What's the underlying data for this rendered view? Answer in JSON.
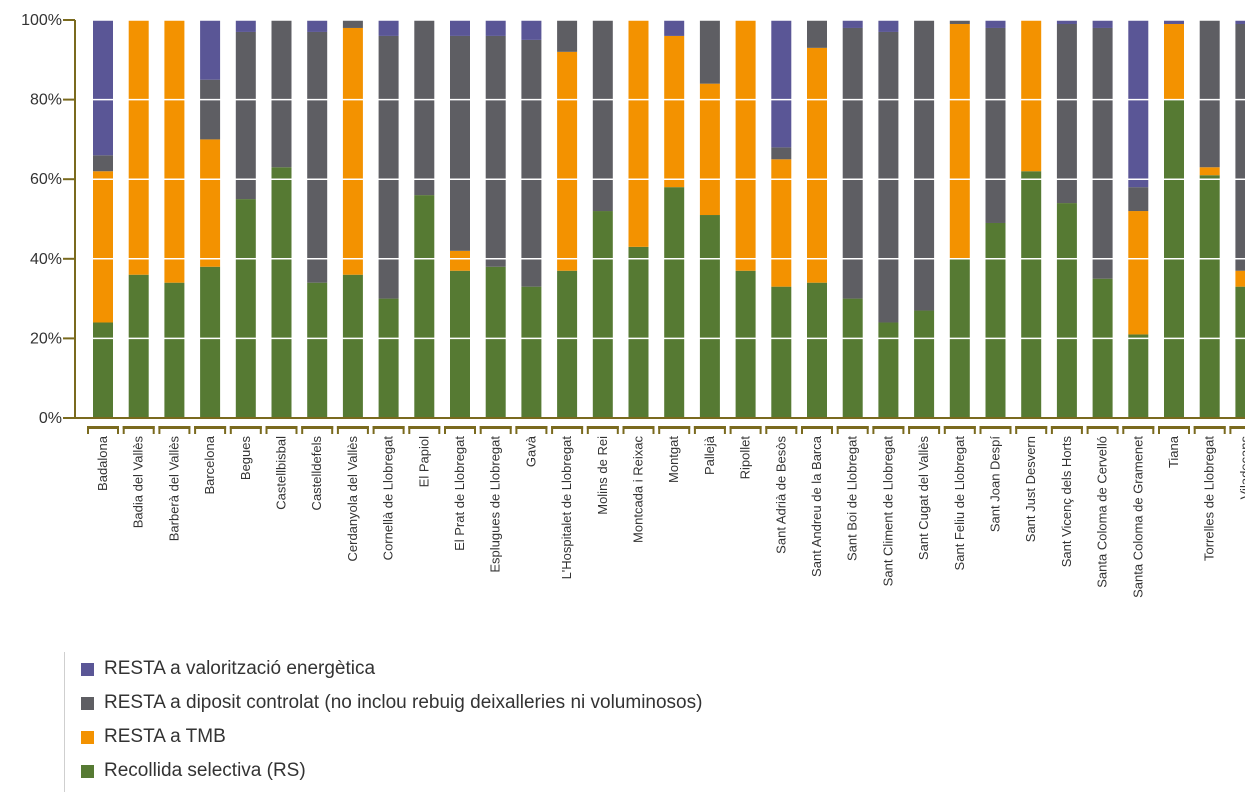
{
  "chart_data": {
    "type": "bar",
    "stacked": true,
    "categories": [
      "Badalona",
      "Badia del Vallès",
      "Barberà del Vallès",
      "Barcelona",
      "Begues",
      "Castellbisbal",
      "Castelldefels",
      "Cerdanyola del Vallès",
      "Cornellà de Llobregat",
      "El Papiol",
      "El Prat de Llobregat",
      "Esplugues de Llobregat",
      "Gavà",
      "L'Hospitalet de Llobregat",
      "Molins de Rei",
      "Montcada i Reixac",
      "Montgat",
      "Pallejà",
      "Ripollet",
      "Sant Adrià de Besòs",
      "Sant Andreu de la Barca",
      "Sant Boi de Llobregat",
      "Sant Climent de Llobregat",
      "Sant Cugat del Vallès",
      "Sant Feliu de Llobregat",
      "Sant Joan Despí",
      "Sant Just Desvern",
      "Sant Vicenç dels Horts",
      "Santa Coloma de Cervelló",
      "Santa Coloma de Gramenet",
      "Tiana",
      "Torrelles de Llobregat",
      "Viladecans"
    ],
    "yticks": [
      "0%",
      "20%",
      "40%",
      "60%",
      "80%",
      "100%"
    ],
    "ylim": [
      0,
      100
    ],
    "series": [
      {
        "name": "Recollida selectiva (RS)",
        "color": "#567a33",
        "values": [
          24,
          36,
          34,
          38,
          55,
          63,
          34,
          36,
          30,
          56,
          37,
          38,
          33,
          37,
          52,
          43,
          58,
          51,
          37,
          33,
          34,
          30,
          24,
          27,
          40,
          49,
          62,
          54,
          35,
          21,
          80,
          61,
          33
        ]
      },
      {
        "name": "RESTA a TMB",
        "color": "#f39200",
        "values": [
          38,
          64,
          66,
          32,
          0,
          0,
          0,
          62,
          0,
          0,
          5,
          0,
          0,
          55,
          0,
          57,
          38,
          33,
          63,
          32,
          59,
          0,
          0,
          0,
          59,
          0,
          38,
          0,
          0,
          31,
          19,
          2,
          4
        ]
      },
      {
        "name": "RESTA a diposit controlat (no inclou rebuig deixalleries ni voluminosos)",
        "color": "#5e5e63",
        "values": [
          4,
          0,
          0,
          15,
          42,
          37,
          63,
          2,
          66,
          44,
          54,
          58,
          62,
          8,
          48,
          0,
          0,
          16,
          0,
          3,
          7,
          68,
          73,
          73,
          1,
          49,
          0,
          45,
          63,
          6,
          0,
          37,
          62
        ]
      },
      {
        "name": "RESTA a valorització energètica",
        "color": "#5a5696",
        "values": [
          34,
          0,
          0,
          15,
          3,
          0,
          3,
          0,
          4,
          0,
          4,
          4,
          5,
          0,
          0,
          0,
          4,
          0,
          0,
          32,
          0,
          2,
          3,
          0,
          0,
          2,
          0,
          1,
          2,
          42,
          1,
          0,
          1
        ]
      }
    ],
    "legend": [
      "RESTA a valorització energètica",
      "RESTA a diposit controlat (no inclou rebuig deixalleries ni voluminosos)",
      "RESTA a TMB",
      "Recollida selectiva (RS)"
    ],
    "legend_colors": [
      "#5a5696",
      "#5e5e63",
      "#f39200",
      "#567a33"
    ],
    "axis_color": "#7a6a1e",
    "legend_placement": "bottom-left"
  }
}
